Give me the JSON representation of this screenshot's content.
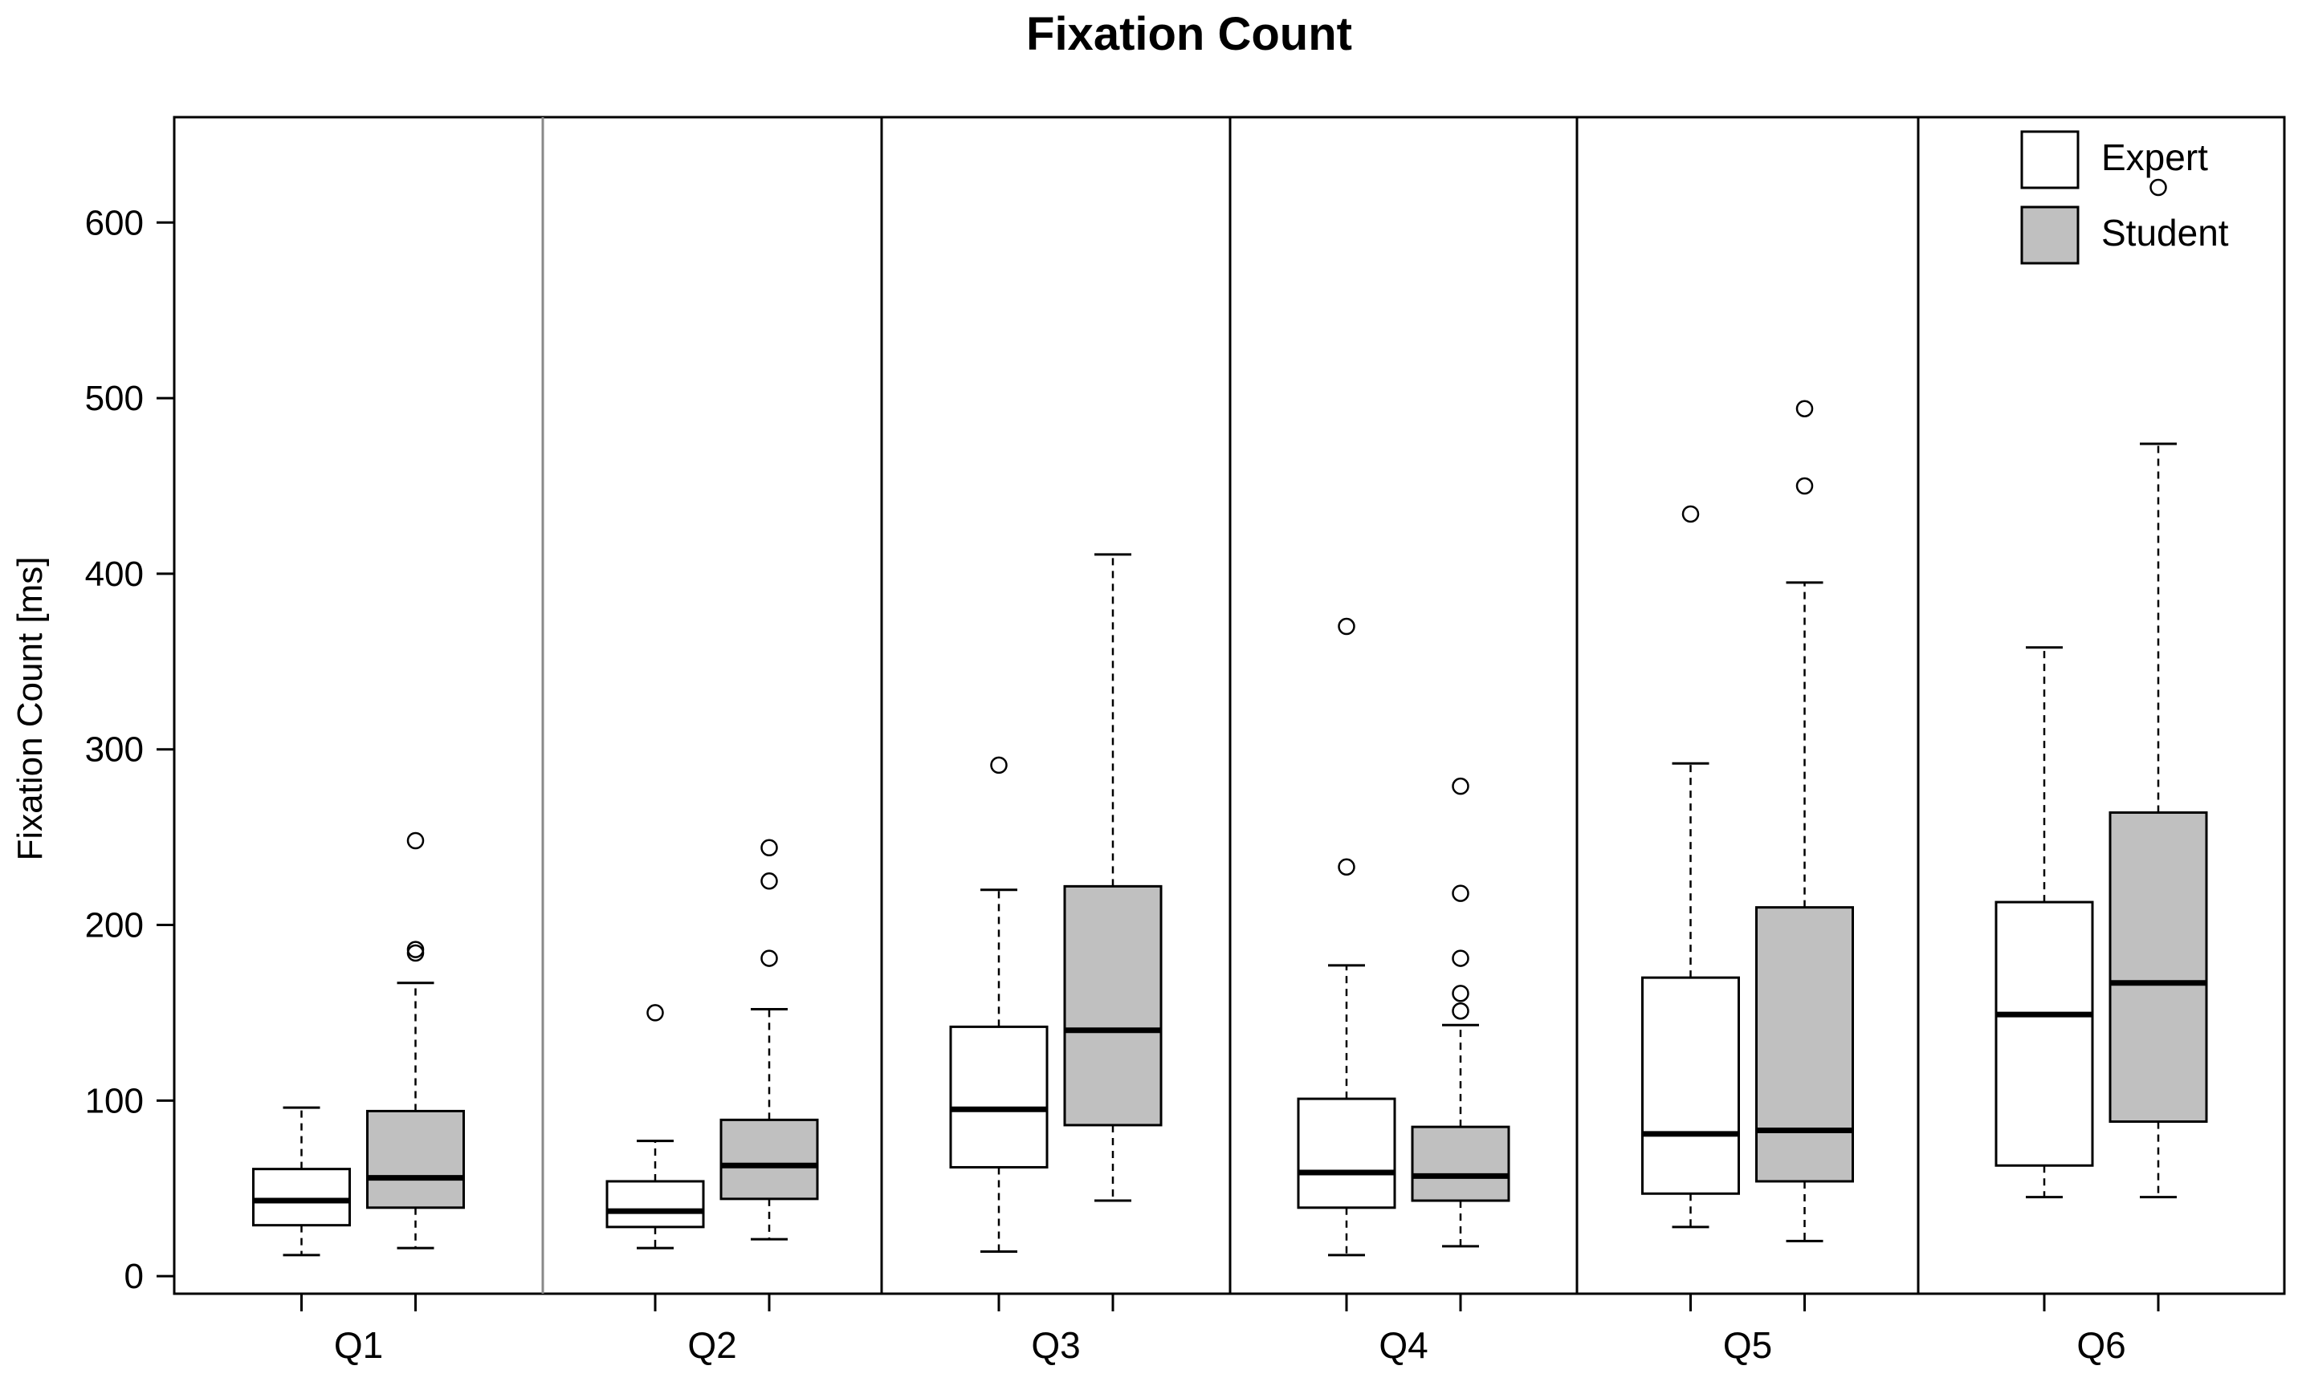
{
  "chart_data": {
    "type": "boxplot",
    "title": "Fixation Count",
    "xlabel": "",
    "ylabel": "Fixation Count [ms]",
    "ylim": [
      -10,
      660
    ],
    "yticks": [
      0,
      100,
      200,
      300,
      400,
      500,
      600
    ],
    "ytick_labels": [
      "0",
      "100",
      "200",
      "300",
      "400",
      "500",
      "600"
    ],
    "categories": [
      "Q1",
      "Q2",
      "Q3",
      "Q4",
      "Q5",
      "Q6"
    ],
    "legend": {
      "position": "top-right",
      "entries": [
        {
          "label": "Expert",
          "color": "#ffffff"
        },
        {
          "label": "Student",
          "color": "#c0c0c0"
        }
      ]
    },
    "series": [
      {
        "name": "Expert",
        "color": "#ffffff",
        "boxes": [
          {
            "category": "Q1",
            "min": 12,
            "q1": 29,
            "median": 43,
            "q3": 61,
            "max": 96,
            "outliers": []
          },
          {
            "category": "Q2",
            "min": 16,
            "q1": 28,
            "median": 37,
            "q3": 54,
            "max": 77,
            "outliers": [
              150
            ]
          },
          {
            "category": "Q3",
            "min": 14,
            "q1": 62,
            "median": 95,
            "q3": 142,
            "max": 220,
            "outliers": [
              291
            ]
          },
          {
            "category": "Q4",
            "min": 12,
            "q1": 39,
            "median": 59,
            "q3": 101,
            "max": 177,
            "outliers": [
              233,
              370
            ]
          },
          {
            "category": "Q5",
            "min": 28,
            "q1": 47,
            "median": 81,
            "q3": 170,
            "max": 292,
            "outliers": [
              434
            ]
          },
          {
            "category": "Q6",
            "min": 45,
            "q1": 63,
            "median": 149,
            "q3": 213,
            "max": 358,
            "outliers": []
          }
        ]
      },
      {
        "name": "Student",
        "color": "#c0c0c0",
        "boxes": [
          {
            "category": "Q1",
            "min": 16,
            "q1": 39,
            "median": 56,
            "q3": 94,
            "max": 167,
            "outliers": [
              184,
              186,
              248
            ]
          },
          {
            "category": "Q2",
            "min": 21,
            "q1": 44,
            "median": 63,
            "q3": 89,
            "max": 152,
            "outliers": [
              181,
              225,
              244
            ]
          },
          {
            "category": "Q3",
            "min": 43,
            "q1": 86,
            "median": 140,
            "q3": 222,
            "max": 411,
            "outliers": []
          },
          {
            "category": "Q4",
            "min": 17,
            "q1": 43,
            "median": 57,
            "q3": 85,
            "max": 143,
            "outliers": [
              151,
              161,
              181,
              218,
              279
            ]
          },
          {
            "category": "Q5",
            "min": 20,
            "q1": 54,
            "median": 83,
            "q3": 210,
            "max": 395,
            "outliers": [
              450,
              494
            ]
          },
          {
            "category": "Q6",
            "min": 45,
            "q1": 88,
            "median": 167,
            "q3": 264,
            "max": 474,
            "outliers": [
              620
            ]
          }
        ]
      }
    ]
  }
}
